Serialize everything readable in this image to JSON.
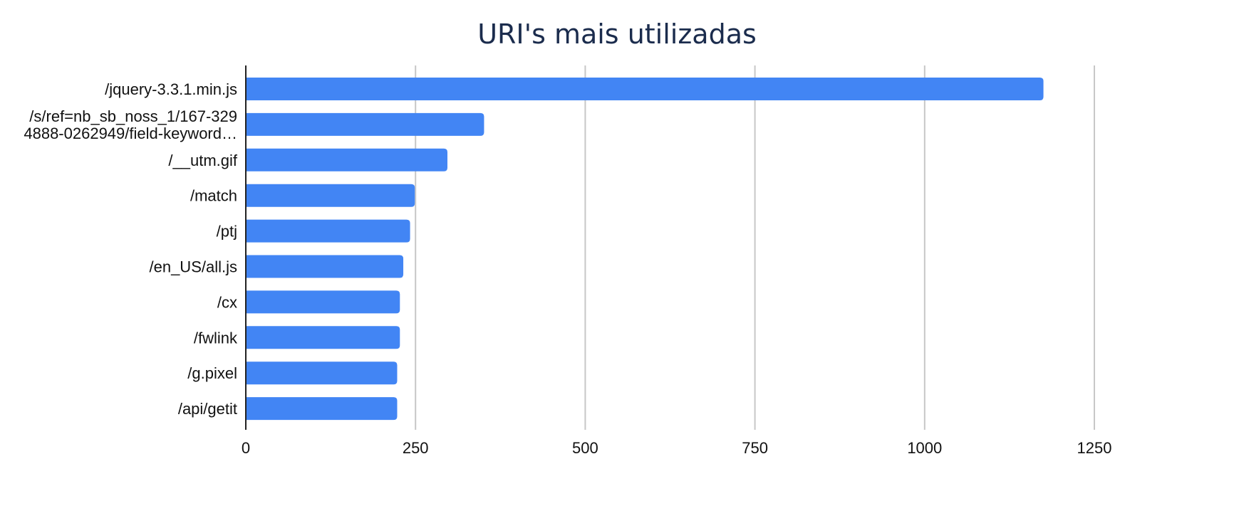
{
  "chart_data": {
    "type": "bar",
    "orientation": "horizontal",
    "title": "URI's mais utilizadas",
    "xlabel": "",
    "ylabel": "",
    "categories": [
      [
        "/jquery-3.3.1.min.js"
      ],
      [
        "/s/ref=nb_sb_noss_1/167-329",
        "4888-0262949/field-keyword…"
      ],
      [
        "/__utm.gif"
      ],
      [
        "/match"
      ],
      [
        "/ptj"
      ],
      [
        "/en_US/all.js"
      ],
      [
        "/cx"
      ],
      [
        "/fwlink"
      ],
      [
        "/g.pixel"
      ],
      [
        "/api/getit"
      ]
    ],
    "values": [
      1175,
      351,
      297,
      249,
      242,
      232,
      227,
      227,
      223,
      223
    ],
    "xlim": [
      0,
      1250
    ],
    "xticks": [
      0,
      250,
      500,
      750,
      1000,
      1250
    ],
    "xtick_labels": [
      "0",
      "250",
      "500",
      "750",
      "1000",
      "1250"
    ],
    "grid": "vertical",
    "legend": "none",
    "bar_color": "#4285f4",
    "grid_color": "#c7c7c7",
    "axis_color": "#222222",
    "title_color": "#1b2c4d"
  }
}
